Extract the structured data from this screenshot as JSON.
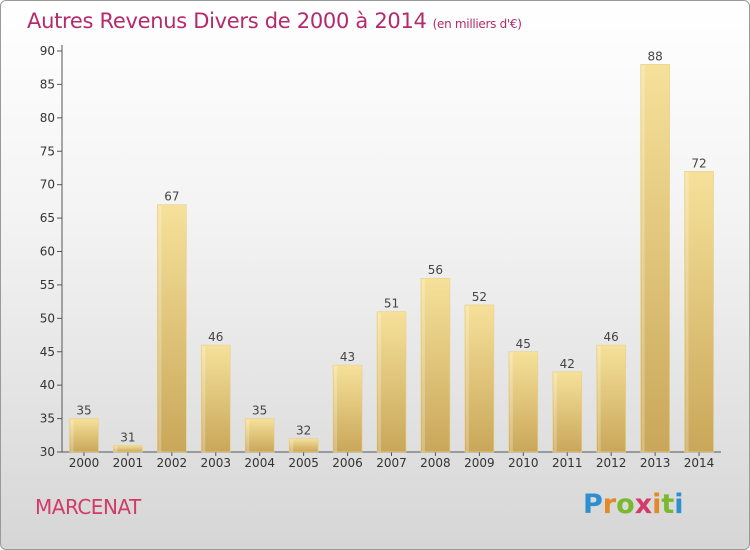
{
  "title": "Autres Revenus Divers de 2000 à 2014",
  "unit": "(en milliers d'€)",
  "place": "MARCENAT",
  "brand": "Proxiti",
  "colors": {
    "title": "#b5296d",
    "place": "#d23a6a",
    "bar_top": "#f6e19a",
    "bar_bottom": "#c9a75a"
  },
  "chart_data": {
    "type": "bar",
    "title": "Autres Revenus Divers de 2000 à 2014",
    "subtitle": "(en milliers d'€)",
    "xlabel": "",
    "ylabel": "",
    "categories": [
      "2000",
      "2001",
      "2002",
      "2003",
      "2004",
      "2005",
      "2006",
      "2007",
      "2008",
      "2009",
      "2010",
      "2011",
      "2012",
      "2013",
      "2014"
    ],
    "values": [
      35,
      31,
      67,
      46,
      35,
      32,
      43,
      51,
      56,
      52,
      45,
      42,
      46,
      88,
      72
    ],
    "ylim": [
      30,
      90
    ],
    "yticks": [
      30,
      35,
      40,
      45,
      50,
      55,
      60,
      65,
      70,
      75,
      80,
      85,
      90
    ],
    "grid": false,
    "data_labels": true
  }
}
